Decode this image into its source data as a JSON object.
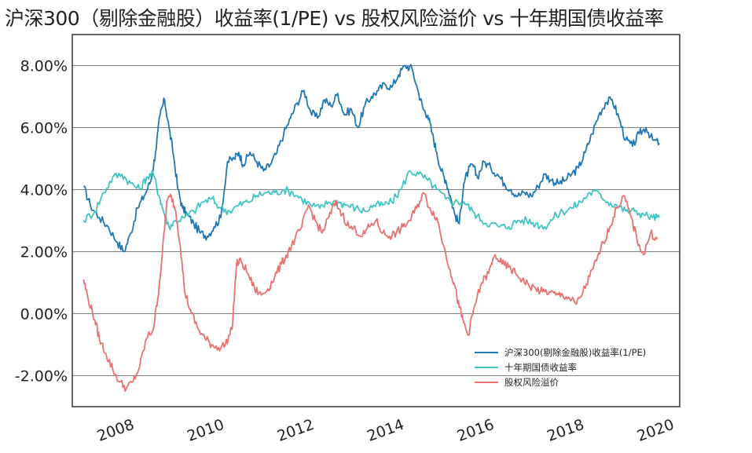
{
  "chart_data": {
    "type": "line",
    "title": "沪深300（剔除金融股）收益率(1/PE) vs 股权风险溢价 vs 十年期国债收益率",
    "xlabel": "",
    "ylabel": "",
    "xlim": [
      2007.0,
      2020.5
    ],
    "ylim": [
      -3.0,
      9.0
    ],
    "yticks": [
      -2,
      0,
      2,
      4,
      6,
      8
    ],
    "ytick_labels": [
      "-2.00%",
      "0.00%",
      "2.00%",
      "4.00%",
      "6.00%",
      "8.00%"
    ],
    "xticks": [
      2008,
      2010,
      2012,
      2014,
      2016,
      2018,
      2020
    ],
    "xtick_labels": [
      "2008",
      "2010",
      "2012",
      "2014",
      "2016",
      "2018",
      "2020"
    ],
    "grid": "horizontal",
    "legend_position": "bottom-right",
    "series": [
      {
        "name": "沪深300(剔除金融股)收益率(1/PE)",
        "color": "#1f77b4",
        "x": [
          2007.25,
          2007.4,
          2007.6,
          2007.8,
          2008.0,
          2008.15,
          2008.3,
          2008.45,
          2008.6,
          2008.75,
          2008.85,
          2008.95,
          2009.05,
          2009.15,
          2009.25,
          2009.35,
          2009.45,
          2009.55,
          2009.7,
          2009.85,
          2010.0,
          2010.15,
          2010.3,
          2010.45,
          2010.6,
          2010.7,
          2010.8,
          2010.95,
          2011.1,
          2011.25,
          2011.4,
          2011.55,
          2011.7,
          2011.85,
          2012.0,
          2012.15,
          2012.3,
          2012.45,
          2012.6,
          2012.75,
          2012.9,
          2013.05,
          2013.2,
          2013.35,
          2013.5,
          2013.65,
          2013.8,
          2013.95,
          2014.1,
          2014.25,
          2014.4,
          2014.55,
          2014.7,
          2014.8,
          2014.9,
          2015.0,
          2015.1,
          2015.2,
          2015.3,
          2015.4,
          2015.5,
          2015.6,
          2015.7,
          2015.8,
          2015.9,
          2016.0,
          2016.15,
          2016.3,
          2016.45,
          2016.6,
          2016.75,
          2016.9,
          2017.05,
          2017.2,
          2017.35,
          2017.5,
          2017.65,
          2017.8,
          2017.95,
          2018.1,
          2018.25,
          2018.4,
          2018.55,
          2018.7,
          2018.85,
          2019.0,
          2019.15,
          2019.3,
          2019.45,
          2019.6,
          2019.75,
          2019.9,
          2020.05
        ],
        "y": [
          4.1,
          3.5,
          3.1,
          2.8,
          2.3,
          2.0,
          2.6,
          3.4,
          3.8,
          4.3,
          5.2,
          6.4,
          6.9,
          6.0,
          5.1,
          4.0,
          3.4,
          3.2,
          2.9,
          2.6,
          2.5,
          2.8,
          3.1,
          4.9,
          5.0,
          5.2,
          4.8,
          5.2,
          4.9,
          4.6,
          4.8,
          5.2,
          5.8,
          6.3,
          6.8,
          7.2,
          6.5,
          6.3,
          6.9,
          6.7,
          7.1,
          6.4,
          6.6,
          6.0,
          6.7,
          7.0,
          7.2,
          7.4,
          7.3,
          7.7,
          8.0,
          7.9,
          7.1,
          6.6,
          6.4,
          5.8,
          5.2,
          4.6,
          4.3,
          3.8,
          3.2,
          2.9,
          4.2,
          4.6,
          4.8,
          4.4,
          4.9,
          4.7,
          4.5,
          4.2,
          4.0,
          3.8,
          3.9,
          3.8,
          4.1,
          4.5,
          4.3,
          4.2,
          4.3,
          4.5,
          4.7,
          5.2,
          5.8,
          6.4,
          6.8,
          6.9,
          6.3,
          5.6,
          5.4,
          5.8,
          6.0,
          5.6,
          5.5
        ]
      },
      {
        "name": "十年期国债收益率",
        "color": "#40c4c2",
        "x": [
          2007.25,
          2007.5,
          2007.7,
          2007.9,
          2008.1,
          2008.3,
          2008.5,
          2008.65,
          2008.8,
          2008.95,
          2009.05,
          2009.15,
          2009.3,
          2009.5,
          2009.7,
          2009.9,
          2010.1,
          2010.3,
          2010.5,
          2010.7,
          2010.9,
          2011.1,
          2011.3,
          2011.5,
          2011.7,
          2011.9,
          2012.1,
          2012.3,
          2012.5,
          2012.7,
          2012.9,
          2013.1,
          2013.3,
          2013.5,
          2013.7,
          2013.9,
          2014.1,
          2014.3,
          2014.5,
          2014.7,
          2014.9,
          2015.1,
          2015.3,
          2015.5,
          2015.7,
          2015.9,
          2016.1,
          2016.3,
          2016.5,
          2016.7,
          2016.9,
          2017.1,
          2017.3,
          2017.5,
          2017.7,
          2017.9,
          2018.1,
          2018.3,
          2018.5,
          2018.7,
          2018.9,
          2019.1,
          2019.3,
          2019.5,
          2019.7,
          2019.9,
          2020.05
        ],
        "y": [
          3.0,
          3.3,
          3.9,
          4.4,
          4.5,
          4.2,
          4.0,
          4.4,
          4.5,
          3.7,
          3.2,
          2.8,
          3.0,
          3.1,
          3.3,
          3.6,
          3.7,
          3.4,
          3.3,
          3.5,
          3.6,
          3.8,
          3.9,
          3.9,
          4.0,
          3.9,
          3.7,
          3.5,
          3.4,
          3.6,
          3.6,
          3.5,
          3.4,
          3.3,
          3.5,
          3.5,
          3.6,
          4.0,
          4.6,
          4.5,
          4.3,
          4.0,
          3.7,
          3.6,
          3.6,
          3.3,
          3.0,
          2.9,
          2.8,
          2.8,
          3.0,
          3.0,
          2.9,
          2.8,
          3.1,
          3.3,
          3.4,
          3.6,
          3.9,
          3.9,
          3.6,
          3.5,
          3.3,
          3.3,
          3.2,
          3.1,
          3.1
        ]
      },
      {
        "name": "股权风险溢价",
        "color": "#e9706f",
        "x": [
          2007.25,
          2007.35,
          2007.5,
          2007.6,
          2007.75,
          2007.9,
          2008.05,
          2008.2,
          2008.35,
          2008.5,
          2008.65,
          2008.8,
          2008.9,
          2009.0,
          2009.1,
          2009.2,
          2009.3,
          2009.4,
          2009.5,
          2009.65,
          2009.8,
          2009.95,
          2010.1,
          2010.25,
          2010.4,
          2010.55,
          2010.65,
          2010.75,
          2010.9,
          2011.05,
          2011.2,
          2011.35,
          2011.5,
          2011.65,
          2011.8,
          2011.95,
          2012.1,
          2012.25,
          2012.4,
          2012.55,
          2012.7,
          2012.85,
          2013.0,
          2013.15,
          2013.3,
          2013.45,
          2013.6,
          2013.75,
          2013.9,
          2014.05,
          2014.2,
          2014.35,
          2014.5,
          2014.65,
          2014.8,
          2014.95,
          2015.1,
          2015.25,
          2015.4,
          2015.5,
          2015.6,
          2015.7,
          2015.8,
          2015.95,
          2016.1,
          2016.25,
          2016.4,
          2016.55,
          2016.7,
          2016.85,
          2017.0,
          2017.15,
          2017.3,
          2017.45,
          2017.6,
          2017.75,
          2017.9,
          2018.05,
          2018.2,
          2018.35,
          2018.5,
          2018.65,
          2018.8,
          2018.95,
          2019.1,
          2019.25,
          2019.4,
          2019.55,
          2019.7,
          2019.85,
          2020.0
        ],
        "y": [
          1.1,
          0.5,
          -0.2,
          -0.8,
          -1.3,
          -1.8,
          -2.2,
          -2.4,
          -2.2,
          -1.7,
          -0.8,
          -0.5,
          0.5,
          1.9,
          3.6,
          3.8,
          3.3,
          2.2,
          0.7,
          0.0,
          -0.5,
          -0.8,
          -1.0,
          -1.1,
          -1.0,
          -0.5,
          1.6,
          1.7,
          1.3,
          0.8,
          0.6,
          0.8,
          1.2,
          1.6,
          2.0,
          2.4,
          2.8,
          3.5,
          3.0,
          2.6,
          3.1,
          3.6,
          3.2,
          2.8,
          2.7,
          2.5,
          2.8,
          3.0,
          2.6,
          2.5,
          2.6,
          2.8,
          3.0,
          3.4,
          3.9,
          3.4,
          3.1,
          2.2,
          1.4,
          0.9,
          0.2,
          -0.3,
          -0.7,
          0.3,
          1.0,
          1.3,
          1.9,
          1.6,
          1.5,
          1.3,
          1.1,
          0.9,
          0.8,
          0.7,
          0.7,
          0.6,
          0.6,
          0.5,
          0.3,
          0.7,
          1.2,
          1.7,
          2.3,
          2.8,
          3.4,
          3.8,
          3.2,
          2.4,
          1.9,
          2.6,
          2.4
        ]
      }
    ]
  }
}
